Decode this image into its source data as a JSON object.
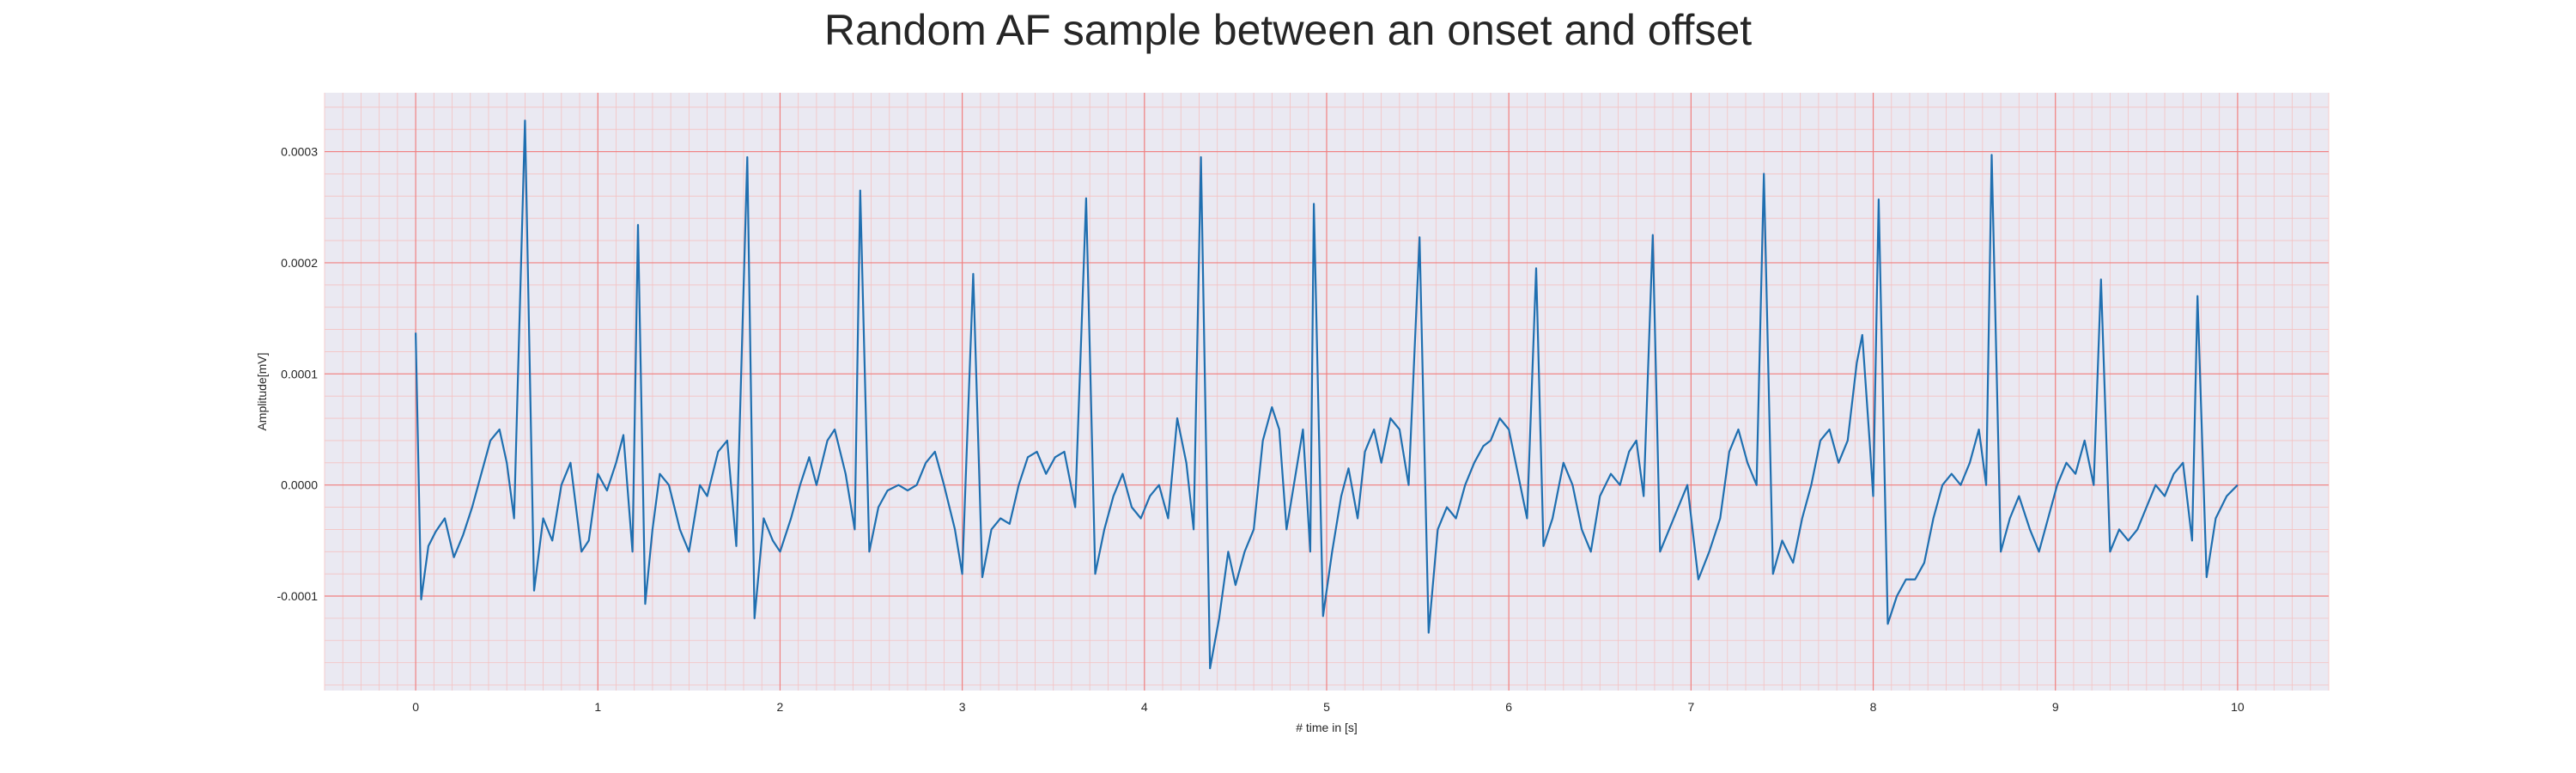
{
  "chart_data": {
    "type": "line",
    "title": "Random AF sample between an onset and offset",
    "xlabel": "# time in [s]",
    "ylabel": "Amplitude[mV]",
    "xlim": [
      -0.5,
      10.5
    ],
    "ylim": [
      -0.000185,
      0.000353
    ],
    "xticks": [
      0,
      1,
      2,
      3,
      4,
      5,
      6,
      7,
      8,
      9,
      10
    ],
    "xtick_labels": [
      "0",
      "1",
      "2",
      "3",
      "4",
      "5",
      "6",
      "7",
      "8",
      "9",
      "10"
    ],
    "yticks": [
      -0.0001,
      0.0,
      0.0001,
      0.0002,
      0.0003
    ],
    "ytick_labels": [
      "-0.0001",
      "0.0000",
      "0.0001",
      "0.0002",
      "0.0003"
    ],
    "grid": true,
    "major_grid_color": "#f08080",
    "minor_grid_color": "#f4c2c2",
    "background_color": "#eae9f2",
    "series": [
      {
        "color": "#1f6fb0",
        "points": [
          [
            0.0,
            0.000137
          ],
          [
            0.03,
            -0.000103
          ],
          [
            0.07,
            -5.5e-05
          ],
          [
            0.11,
            -4.2e-05
          ],
          [
            0.16,
            -3e-05
          ],
          [
            0.21,
            -6.5e-05
          ],
          [
            0.26,
            -4.5e-05
          ],
          [
            0.31,
            -2e-05
          ],
          [
            0.36,
            1e-05
          ],
          [
            0.41,
            4e-05
          ],
          [
            0.46,
            5e-05
          ],
          [
            0.5,
            2e-05
          ],
          [
            0.54,
            -3e-05
          ],
          [
            0.6,
            0.000328
          ],
          [
            0.65,
            -9.5e-05
          ],
          [
            0.7,
            -3e-05
          ],
          [
            0.75,
            -5e-05
          ],
          [
            0.8,
            0.0
          ],
          [
            0.85,
            2e-05
          ],
          [
            0.91,
            -6e-05
          ],
          [
            0.95,
            -5e-05
          ],
          [
            1.0,
            1e-05
          ],
          [
            1.05,
            -5e-06
          ],
          [
            1.1,
            2e-05
          ],
          [
            1.14,
            4.5e-05
          ],
          [
            1.19,
            -6e-05
          ],
          [
            1.22,
            0.000234
          ],
          [
            1.26,
            -0.000107
          ],
          [
            1.3,
            -4e-05
          ],
          [
            1.34,
            1e-05
          ],
          [
            1.39,
            0.0
          ],
          [
            1.45,
            -4e-05
          ],
          [
            1.5,
            -6e-05
          ],
          [
            1.56,
            0.0
          ],
          [
            1.6,
            -1e-05
          ],
          [
            1.66,
            3e-05
          ],
          [
            1.71,
            4e-05
          ],
          [
            1.76,
            -5.5e-05
          ],
          [
            1.82,
            0.000295
          ],
          [
            1.86,
            -0.00012
          ],
          [
            1.91,
            -3e-05
          ],
          [
            1.96,
            -5e-05
          ],
          [
            2.0,
            -6e-05
          ],
          [
            2.06,
            -3e-05
          ],
          [
            2.11,
            0.0
          ],
          [
            2.16,
            2.5e-05
          ],
          [
            2.2,
            0.0
          ],
          [
            2.26,
            4e-05
          ],
          [
            2.3,
            5e-05
          ],
          [
            2.36,
            1e-05
          ],
          [
            2.41,
            -4e-05
          ],
          [
            2.44,
            0.000265
          ],
          [
            2.49,
            -6e-05
          ],
          [
            2.54,
            -2e-05
          ],
          [
            2.59,
            -5e-06
          ],
          [
            2.65,
            0.0
          ],
          [
            2.7,
            -5e-06
          ],
          [
            2.75,
            0.0
          ],
          [
            2.8,
            2e-05
          ],
          [
            2.85,
            3e-05
          ],
          [
            2.9,
            0.0
          ],
          [
            2.96,
            -4e-05
          ],
          [
            3.0,
            -8e-05
          ],
          [
            3.06,
            0.00019
          ],
          [
            3.11,
            -8.3e-05
          ],
          [
            3.16,
            -4e-05
          ],
          [
            3.21,
            -3e-05
          ],
          [
            3.26,
            -3.5e-05
          ],
          [
            3.31,
            0.0
          ],
          [
            3.36,
            2.5e-05
          ],
          [
            3.41,
            3e-05
          ],
          [
            3.46,
            1e-05
          ],
          [
            3.51,
            2.5e-05
          ],
          [
            3.56,
            3e-05
          ],
          [
            3.62,
            -2e-05
          ],
          [
            3.68,
            0.000258
          ],
          [
            3.73,
            -8e-05
          ],
          [
            3.78,
            -4e-05
          ],
          [
            3.83,
            -1e-05
          ],
          [
            3.88,
            1e-05
          ],
          [
            3.93,
            -2e-05
          ],
          [
            3.98,
            -3e-05
          ],
          [
            4.03,
            -1e-05
          ],
          [
            4.08,
            0.0
          ],
          [
            4.13,
            -3e-05
          ],
          [
            4.18,
            6e-05
          ],
          [
            4.23,
            2e-05
          ],
          [
            4.27,
            -4e-05
          ],
          [
            4.31,
            0.000295
          ],
          [
            4.36,
            -0.000165
          ],
          [
            4.41,
            -0.00012
          ],
          [
            4.46,
            -6e-05
          ],
          [
            4.5,
            -9e-05
          ],
          [
            4.55,
            -6e-05
          ],
          [
            4.6,
            -4e-05
          ],
          [
            4.65,
            4e-05
          ],
          [
            4.7,
            7e-05
          ],
          [
            4.74,
            5e-05
          ],
          [
            4.78,
            -4e-05
          ],
          [
            4.82,
            0.0
          ],
          [
            4.87,
            5e-05
          ],
          [
            4.91,
            -6e-05
          ],
          [
            4.93,
            0.000253
          ],
          [
            4.98,
            -0.000118
          ],
          [
            5.03,
            -6e-05
          ],
          [
            5.08,
            -1e-05
          ],
          [
            5.12,
            1.5e-05
          ],
          [
            5.17,
            -3e-05
          ],
          [
            5.21,
            3e-05
          ],
          [
            5.26,
            5e-05
          ],
          [
            5.3,
            2e-05
          ],
          [
            5.35,
            6e-05
          ],
          [
            5.4,
            5e-05
          ],
          [
            5.45,
            0.0
          ],
          [
            5.51,
            0.000223
          ],
          [
            5.56,
            -0.000133
          ],
          [
            5.61,
            -4e-05
          ],
          [
            5.66,
            -2e-05
          ],
          [
            5.71,
            -3e-05
          ],
          [
            5.76,
            0.0
          ],
          [
            5.81,
            2e-05
          ],
          [
            5.86,
            3.5e-05
          ],
          [
            5.9,
            4e-05
          ],
          [
            5.95,
            6e-05
          ],
          [
            6.0,
            5e-05
          ],
          [
            6.05,
            1e-05
          ],
          [
            6.1,
            -3e-05
          ],
          [
            6.15,
            0.000195
          ],
          [
            6.19,
            -5.5e-05
          ],
          [
            6.24,
            -3e-05
          ],
          [
            6.3,
            2e-05
          ],
          [
            6.35,
            0.0
          ],
          [
            6.4,
            -4e-05
          ],
          [
            6.45,
            -6e-05
          ],
          [
            6.5,
            -1e-05
          ],
          [
            6.56,
            1e-05
          ],
          [
            6.61,
            0.0
          ],
          [
            6.66,
            3e-05
          ],
          [
            6.7,
            4e-05
          ],
          [
            6.74,
            -1e-05
          ],
          [
            6.79,
            0.000225
          ],
          [
            6.83,
            -6e-05
          ],
          [
            6.88,
            -4e-05
          ],
          [
            6.93,
            -2e-05
          ],
          [
            6.98,
            0.0
          ],
          [
            7.04,
            -8.5e-05
          ],
          [
            7.1,
            -6e-05
          ],
          [
            7.16,
            -3e-05
          ],
          [
            7.21,
            3e-05
          ],
          [
            7.26,
            5e-05
          ],
          [
            7.31,
            2e-05
          ],
          [
            7.36,
            0.0
          ],
          [
            7.4,
            0.00028
          ],
          [
            7.45,
            -8e-05
          ],
          [
            7.5,
            -5e-05
          ],
          [
            7.56,
            -7e-05
          ],
          [
            7.61,
            -3e-05
          ],
          [
            7.66,
            0.0
          ],
          [
            7.71,
            4e-05
          ],
          [
            7.76,
            5e-05
          ],
          [
            7.81,
            2e-05
          ],
          [
            7.86,
            4e-05
          ],
          [
            7.91,
            0.00011
          ],
          [
            7.94,
            0.000135
          ],
          [
            7.98,
            4e-05
          ],
          [
            8.0,
            -1e-05
          ],
          [
            8.03,
            0.000257
          ],
          [
            8.08,
            -0.000125
          ],
          [
            8.13,
            -0.0001
          ],
          [
            8.18,
            -8.5e-05
          ],
          [
            8.23,
            -8.5e-05
          ],
          [
            8.28,
            -7e-05
          ],
          [
            8.33,
            -3e-05
          ],
          [
            8.38,
            0.0
          ],
          [
            8.43,
            1e-05
          ],
          [
            8.48,
            0.0
          ],
          [
            8.53,
            2e-05
          ],
          [
            8.58,
            5e-05
          ],
          [
            8.62,
            0.0
          ],
          [
            8.65,
            0.000297
          ],
          [
            8.7,
            -6e-05
          ],
          [
            8.75,
            -3e-05
          ],
          [
            8.8,
            -1e-05
          ],
          [
            8.86,
            -4e-05
          ],
          [
            8.91,
            -6e-05
          ],
          [
            8.96,
            -3e-05
          ],
          [
            9.01,
            0.0
          ],
          [
            9.06,
            2e-05
          ],
          [
            9.11,
            1e-05
          ],
          [
            9.16,
            4e-05
          ],
          [
            9.21,
            0.0
          ],
          [
            9.25,
            0.000185
          ],
          [
            9.3,
            -6e-05
          ],
          [
            9.35,
            -4e-05
          ],
          [
            9.4,
            -5e-05
          ],
          [
            9.45,
            -4e-05
          ],
          [
            9.5,
            -2e-05
          ],
          [
            9.55,
            0.0
          ],
          [
            9.6,
            -1e-05
          ],
          [
            9.65,
            1e-05
          ],
          [
            9.7,
            2e-05
          ],
          [
            9.75,
            -5e-05
          ],
          [
            9.78,
            0.00017
          ],
          [
            9.83,
            -8.3e-05
          ],
          [
            9.88,
            -3e-05
          ],
          [
            9.94,
            -1e-05
          ],
          [
            10.0,
            0.0
          ]
        ]
      }
    ]
  }
}
